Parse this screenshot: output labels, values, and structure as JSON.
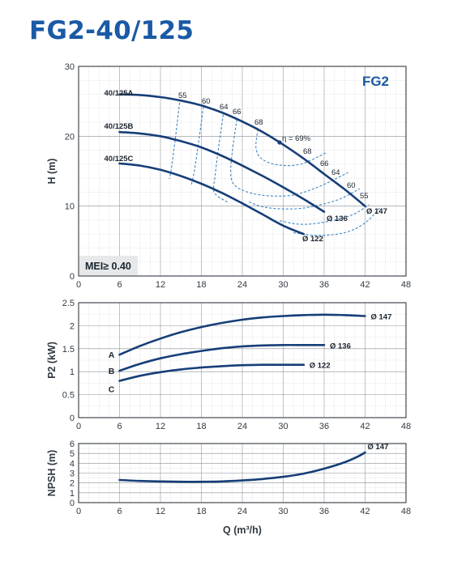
{
  "title": "FG2-40/125",
  "chart_data": [
    {
      "id": "head",
      "type": "line",
      "badge": "FG2",
      "mei_label": "MEI≥ 0.40",
      "ylabel": "H (m)",
      "xlim": [
        0,
        48
      ],
      "ylim": [
        0,
        30
      ],
      "xticks": [
        "0",
        "6",
        "12",
        "18",
        "24",
        "30",
        "36",
        "42",
        "48"
      ],
      "yticks": [
        "0",
        "10",
        "20",
        "30"
      ],
      "series": [
        {
          "name": "40/125A",
          "diameter": "Ø 147",
          "x": [
            6,
            9,
            12,
            15,
            18,
            21,
            24,
            27,
            30,
            33,
            36,
            39,
            42
          ],
          "y": [
            26,
            25.9,
            25.6,
            25.1,
            24.4,
            23.4,
            22.1,
            20.6,
            18.8,
            16.8,
            14.6,
            12.4,
            10
          ]
        },
        {
          "name": "40/125B",
          "diameter": "Ø 136",
          "x": [
            6,
            9,
            12,
            15,
            18,
            21,
            24,
            27,
            30,
            33,
            36
          ],
          "y": [
            20.6,
            20.4,
            20,
            19.3,
            18.4,
            17.2,
            15.8,
            14.3,
            12.7,
            11,
            9.2
          ]
        },
        {
          "name": "40/125C",
          "diameter": "Ø 122",
          "x": [
            6,
            9,
            12,
            15,
            18,
            21,
            24,
            27,
            30,
            33
          ],
          "y": [
            16.1,
            15.8,
            15.2,
            14.3,
            13.2,
            11.9,
            10.4,
            8.8,
            7.2,
            6
          ]
        }
      ],
      "efficiency_labels": [
        "55",
        "60",
        "64",
        "66",
        "68",
        "η = 69%",
        "68",
        "66",
        "64",
        "60",
        "55"
      ],
      "efficiency_curves": [
        {
          "eta": "55",
          "x": [
            14.8,
            14.2,
            13.6,
            13.3
          ],
          "y": [
            24.8,
            19.8,
            15.4,
            13.9
          ]
        },
        {
          "eta": "60",
          "x": [
            18.3,
            17.6,
            17,
            16.5
          ],
          "y": [
            24.2,
            19.2,
            15.2,
            12.9
          ]
        },
        {
          "eta": "64",
          "x": [
            21.2,
            20.5,
            20,
            19.8,
            20.4,
            21.8
          ],
          "y": [
            23.1,
            18.2,
            14.3,
            12.3,
            11.4,
            10.6
          ]
        },
        {
          "eta": "66",
          "x": [
            23.2,
            22.6,
            22.3,
            22.7,
            24.5,
            27.5,
            31.5,
            35.5,
            39.5
          ],
          "y": [
            22.4,
            18.3,
            15.1,
            13.2,
            12.1,
            11.5,
            11.6,
            12.9,
            14.8
          ]
        },
        {
          "eta": "68",
          "x": [
            26.3,
            26,
            26.8,
            29.2,
            32.5,
            36.2
          ],
          "y": [
            21,
            18.4,
            16.8,
            15.9,
            16,
            17.6
          ]
        },
        {
          "eta": "64",
          "x": [
            25,
            27,
            30,
            33.5,
            38,
            41.2
          ],
          "y": [
            10.6,
            9.9,
            9.6,
            9.8,
            10.9,
            12.5
          ]
        },
        {
          "eta": "60",
          "x": [
            29.5,
            32.5,
            36,
            40,
            42.6
          ],
          "y": [
            7.9,
            7.4,
            7.7,
            8.7,
            10.2
          ]
        },
        {
          "eta": "55",
          "x": [
            31.5,
            35,
            39,
            42,
            44.2
          ],
          "y": [
            6.2,
            5.8,
            6.2,
            7.6,
            9.8
          ]
        }
      ]
    },
    {
      "id": "power",
      "type": "line",
      "ylabel": "P2 (kW)",
      "xlim": [
        0,
        48
      ],
      "ylim": [
        0,
        2.5
      ],
      "xticks": [
        "0",
        "6",
        "12",
        "18",
        "24",
        "30",
        "36",
        "42",
        "48"
      ],
      "yticks": [
        "0",
        "0.5",
        "1",
        "1.5",
        "2",
        "2.5"
      ],
      "series": [
        {
          "name": "A",
          "diameter": "Ø 147",
          "x": [
            6,
            9,
            12,
            15,
            18,
            21,
            24,
            27,
            30,
            33,
            36,
            39,
            42
          ],
          "y": [
            1.37,
            1.56,
            1.72,
            1.86,
            1.97,
            2.06,
            2.13,
            2.18,
            2.21,
            2.23,
            2.24,
            2.23,
            2.21
          ]
        },
        {
          "name": "B",
          "diameter": "Ø 136",
          "x": [
            6,
            9,
            12,
            15,
            18,
            21,
            24,
            27,
            30,
            33,
            36
          ],
          "y": [
            1.02,
            1.17,
            1.29,
            1.38,
            1.45,
            1.51,
            1.55,
            1.57,
            1.58,
            1.58,
            1.58
          ]
        },
        {
          "name": "C",
          "diameter": "Ø 122",
          "x": [
            6,
            9,
            12,
            15,
            18,
            21,
            24,
            27,
            30,
            33
          ],
          "y": [
            0.8,
            0.91,
            0.99,
            1.05,
            1.09,
            1.12,
            1.14,
            1.15,
            1.15,
            1.15
          ]
        }
      ]
    },
    {
      "id": "npsh",
      "type": "line",
      "ylabel": "NPSH (m)",
      "xlabel": "Q (m³/h)",
      "xlim": [
        0,
        48
      ],
      "ylim": [
        0,
        6
      ],
      "xticks": [
        "0",
        "6",
        "12",
        "18",
        "24",
        "30",
        "36",
        "42",
        "48"
      ],
      "yticks": [
        "0",
        "1",
        "2",
        "3",
        "4",
        "5",
        "6"
      ],
      "series": [
        {
          "name": "Ø 147",
          "x": [
            6,
            9,
            12,
            15,
            18,
            21,
            24,
            27,
            30,
            33,
            36,
            39,
            41,
            42
          ],
          "y": [
            2.3,
            2.2,
            2.15,
            2.12,
            2.12,
            2.15,
            2.25,
            2.4,
            2.62,
            2.95,
            3.45,
            4.1,
            4.7,
            5.1
          ]
        }
      ]
    }
  ]
}
